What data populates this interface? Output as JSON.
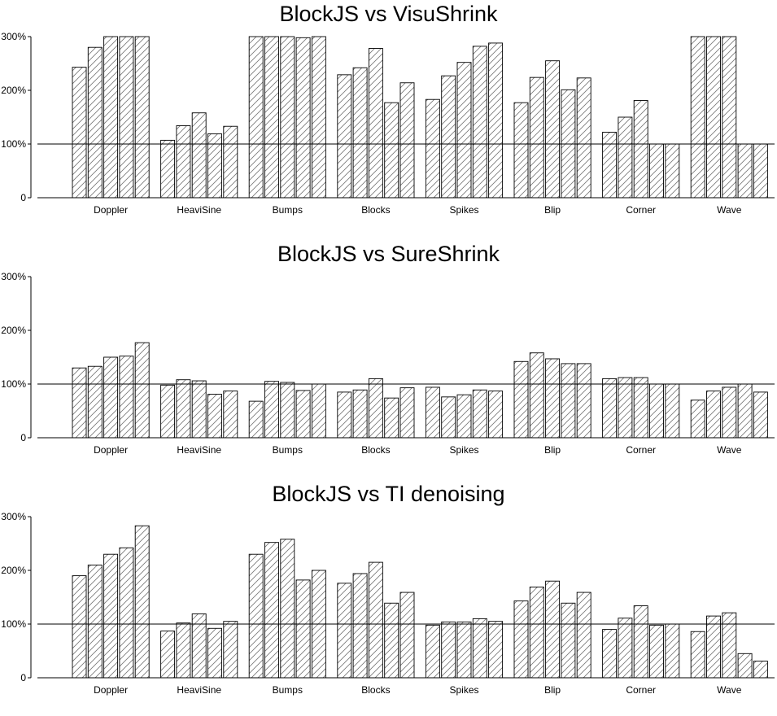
{
  "chart_data": [
    {
      "type": "bar",
      "title": "BlockJS vs VisuShrink",
      "categories": [
        "Doppler",
        "HeaviSine",
        "Bumps",
        "Blocks",
        "Spikes",
        "Blip",
        "Corner",
        "Wave"
      ],
      "y_ticks": [
        "0",
        "100%",
        "200%",
        "300%"
      ],
      "ylim": [
        0,
        300
      ],
      "reference_line": 100,
      "values": [
        [
          243,
          280,
          300,
          300,
          300
        ],
        [
          107,
          134,
          158,
          119,
          133
        ],
        [
          300,
          300,
          300,
          298,
          300
        ],
        [
          229,
          242,
          278,
          177,
          214
        ],
        [
          183,
          227,
          252,
          282,
          288
        ],
        [
          177,
          224,
          255,
          201,
          223
        ],
        [
          122,
          150,
          181,
          100,
          100
        ],
        [
          300,
          300,
          300,
          100,
          100
        ]
      ]
    },
    {
      "type": "bar",
      "title": "BlockJS vs SureShrink",
      "categories": [
        "Doppler",
        "HeaviSine",
        "Bumps",
        "Blocks",
        "Spikes",
        "Blip",
        "Corner",
        "Wave"
      ],
      "y_ticks": [
        "0",
        "100%",
        "200%",
        "300%"
      ],
      "ylim": [
        0,
        300
      ],
      "reference_line": 100,
      "values": [
        [
          130,
          133,
          150,
          152,
          177
        ],
        [
          98,
          108,
          106,
          81,
          87
        ],
        [
          68,
          105,
          103,
          88,
          100
        ],
        [
          85,
          89,
          110,
          74,
          93
        ],
        [
          94,
          76,
          80,
          89,
          87
        ],
        [
          142,
          158,
          147,
          138,
          138
        ],
        [
          110,
          112,
          112,
          100,
          100
        ],
        [
          70,
          87,
          94,
          100,
          85
        ]
      ]
    },
    {
      "type": "bar",
      "title": "BlockJS vs TI denoising",
      "categories": [
        "Doppler",
        "HeaviSine",
        "Bumps",
        "Blocks",
        "Spikes",
        "Blip",
        "Corner",
        "Wave"
      ],
      "y_ticks": [
        "0",
        "100%",
        "200%",
        "300%"
      ],
      "ylim": [
        0,
        300
      ],
      "reference_line": 100,
      "values": [
        [
          190,
          210,
          230,
          242,
          283
        ],
        [
          87,
          102,
          119,
          92,
          105
        ],
        [
          230,
          252,
          258,
          182,
          200
        ],
        [
          176,
          194,
          215,
          139,
          159
        ],
        [
          98,
          104,
          104,
          110,
          105
        ],
        [
          143,
          169,
          180,
          139,
          159
        ],
        [
          90,
          111,
          134,
          98,
          100
        ],
        [
          86,
          115,
          121,
          45,
          31
        ]
      ]
    }
  ]
}
